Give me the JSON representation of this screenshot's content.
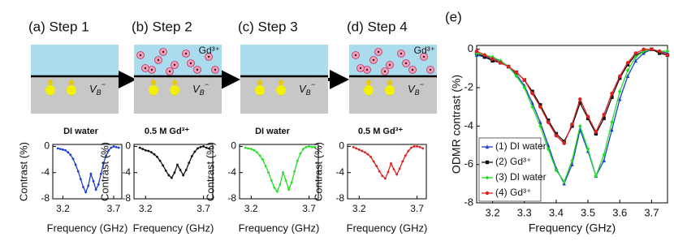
{
  "steps": [
    {
      "label": "(a) Step 1",
      "inset_title": "DI water"
    },
    {
      "label": "(b) Step 2",
      "inset_title": "0.5 M Gd³⁺",
      "ion_label": "Gd³⁺"
    },
    {
      "label": "(c) Step 3",
      "inset_title": "DI water"
    },
    {
      "label": "(d) Step 4",
      "inset_title": "0.5 M Gd³⁺",
      "ion_label": "Gd³⁺"
    }
  ],
  "defect_label": {
    "base": "V",
    "sub": "B",
    "sup": "−"
  },
  "insets": {
    "x_label": "Frequency (GHz)",
    "y_label": "Contrast (%)",
    "xlim": [
      3.1,
      3.78
    ],
    "xticks": [
      3.2,
      3.7
    ],
    "ylim": [
      -8,
      0.3
    ],
    "yticks": [
      0,
      -4,
      -8
    ]
  },
  "chart_data": {
    "type": "line",
    "panel_label": "(e)",
    "x_label": "Frequency (GHz)",
    "y_label": "ODMR contrast (%)",
    "xlim": [
      3.15,
      3.75
    ],
    "xticks": [
      3.2,
      3.3,
      3.4,
      3.5,
      3.6,
      3.7
    ],
    "ylim": [
      -8,
      0.2
    ],
    "yticks": [
      0,
      -2,
      -4,
      -6,
      -8
    ],
    "legend": "lower left",
    "x": [
      3.15,
      3.175,
      3.2,
      3.225,
      3.25,
      3.275,
      3.3,
      3.325,
      3.35,
      3.375,
      3.4,
      3.425,
      3.45,
      3.475,
      3.5,
      3.525,
      3.55,
      3.575,
      3.6,
      3.625,
      3.65,
      3.675,
      3.7,
      3.725,
      3.75
    ],
    "series": [
      {
        "name": "(1) DI water",
        "color": "#1f3fd0",
        "marker": "triangle",
        "values": [
          -0.3,
          -0.4,
          -0.5,
          -0.6,
          -0.9,
          -1.3,
          -1.9,
          -2.8,
          -3.8,
          -5.0,
          -6.2,
          -7.0,
          -6.0,
          -4.2,
          -5.3,
          -6.6,
          -5.8,
          -4.2,
          -2.6,
          -1.4,
          -0.6,
          -0.2,
          0,
          -0.1,
          -0.2
        ]
      },
      {
        "name": "(2) Gd³⁺",
        "color": "#111111",
        "marker": "square",
        "values": [
          -0.2,
          -0.4,
          -0.6,
          -0.7,
          -0.9,
          -1.2,
          -1.6,
          -2.2,
          -2.9,
          -3.7,
          -4.4,
          -4.8,
          -4.0,
          -2.8,
          -3.6,
          -4.4,
          -3.6,
          -2.5,
          -1.5,
          -0.8,
          -0.3,
          -0.1,
          0,
          -0.2,
          -0.3
        ]
      },
      {
        "name": "(3) DI water",
        "color": "#22dd22",
        "marker": "diamond",
        "values": [
          -0.2,
          -0.3,
          -0.4,
          -0.6,
          -0.9,
          -1.4,
          -2.0,
          -3.0,
          -4.0,
          -5.2,
          -6.3,
          -6.9,
          -5.8,
          -4.0,
          -5.2,
          -6.6,
          -5.5,
          -3.8,
          -2.2,
          -1.1,
          -0.4,
          -0.1,
          0,
          -0.1,
          -0.1
        ]
      },
      {
        "name": "(4) Gd³⁺",
        "color": "#e02020",
        "marker": "circle",
        "values": [
          -0.1,
          -0.3,
          -0.5,
          -0.7,
          -0.9,
          -1.2,
          -1.6,
          -2.3,
          -3.0,
          -3.8,
          -4.5,
          -4.9,
          -3.9,
          -2.6,
          -3.5,
          -4.3,
          -3.4,
          -2.3,
          -1.4,
          -0.7,
          -0.2,
          0,
          0,
          -0.1,
          -0.3
        ]
      }
    ]
  }
}
